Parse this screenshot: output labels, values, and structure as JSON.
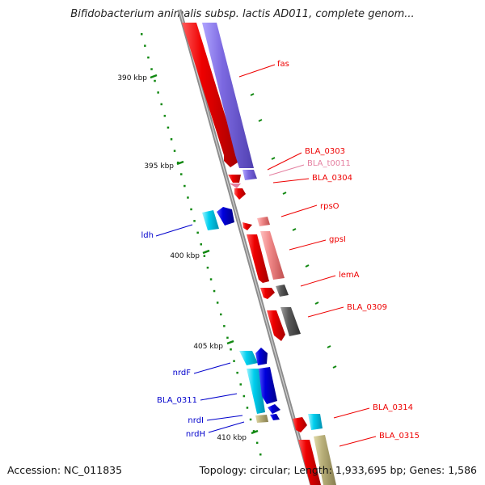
{
  "title": "Bifidobacterium animalis subsp. lactis AD011, complete genom...",
  "footer": {
    "accession": "Accession: NC_011835",
    "summary": "Topology: circular; Length: 1,933,695 bp; Genes: 1,586"
  },
  "ticks": [
    "390 kbp",
    "395 kbp",
    "400 kbp",
    "405 kbp",
    "410 kbp"
  ],
  "colors": {
    "red": "#ee0000",
    "blue": "#0000cc",
    "pink": "#e47fa0",
    "cyan": "#00c8e8",
    "purple": "#7b68d6",
    "salmon": "#f08888",
    "darkgray": "#5a5a5a",
    "khaki": "#b7ae78",
    "backbone": "#8c8c8c",
    "tick": "#118811"
  },
  "genes": {
    "fas": "fas",
    "bla0303": "BLA_0303",
    "blat0011": "BLA_t0011",
    "bla0304": "BLA_0304",
    "rpsO": "rpsO",
    "gpsI": "gpsI",
    "lemA": "lemA",
    "bla0309": "BLA_0309",
    "bla0314": "BLA_0314",
    "bla0315": "BLA_0315",
    "ldh": "ldh",
    "nrdF": "nrdF",
    "bla0311": "BLA_0311",
    "nrdI": "nrdI",
    "nrdH": "nrdH"
  }
}
